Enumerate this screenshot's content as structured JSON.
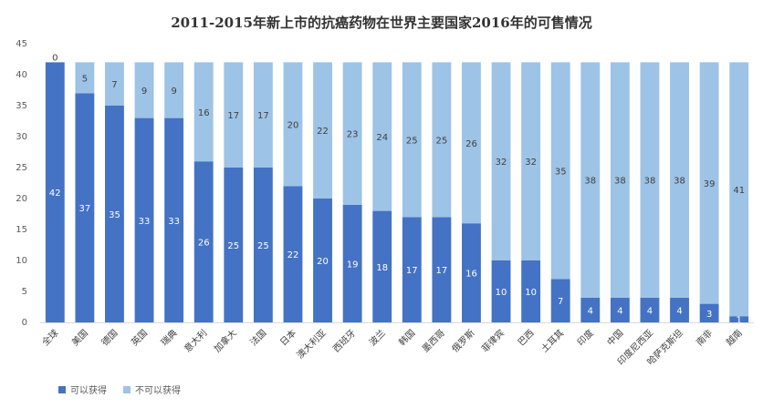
{
  "chart_data": {
    "type": "bar",
    "stacked": true,
    "title": "2011-2015年新上市的抗癌药物在世界主要国家2016年的可售情况",
    "categories": [
      "全球",
      "美国",
      "德国",
      "英国",
      "瑞典",
      "意大利",
      "加拿大",
      "法国",
      "日本",
      "澳大利亚",
      "西班牙",
      "波兰",
      "韩国",
      "墨西哥",
      "俄罗斯",
      "菲律宾",
      "巴西",
      "土耳其",
      "印度",
      "中国",
      "印度尼西亚",
      "哈萨克斯坦",
      "南非",
      "越南"
    ],
    "series": [
      {
        "name": "可以获得",
        "color": "#4472C4",
        "values": [
          42,
          37,
          35,
          33,
          33,
          26,
          25,
          25,
          22,
          20,
          19,
          18,
          17,
          17,
          16,
          10,
          10,
          7,
          4,
          4,
          4,
          4,
          3,
          1
        ]
      },
      {
        "name": "不可以获得",
        "color": "#9DC3E6",
        "values": [
          0,
          5,
          7,
          9,
          9,
          16,
          17,
          17,
          20,
          22,
          23,
          24,
          25,
          25,
          26,
          32,
          32,
          35,
          38,
          38,
          38,
          38,
          39,
          41
        ]
      }
    ],
    "y_ticks": [
      0,
      5,
      10,
      15,
      20,
      25,
      30,
      35,
      40,
      45
    ],
    "ylim": [
      0,
      45
    ],
    "grid": false,
    "legend_position": "bottom-left"
  }
}
